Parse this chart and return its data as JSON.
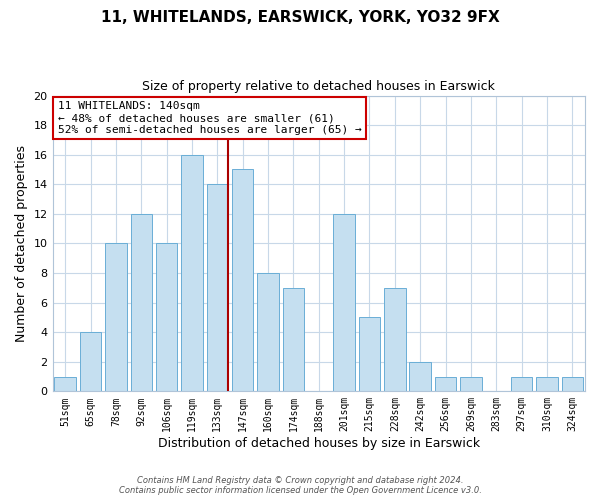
{
  "title": "11, WHITELANDS, EARSWICK, YORK, YO32 9FX",
  "subtitle": "Size of property relative to detached houses in Earswick",
  "xlabel": "Distribution of detached houses by size in Earswick",
  "ylabel": "Number of detached properties",
  "categories": [
    "51sqm",
    "65sqm",
    "78sqm",
    "92sqm",
    "106sqm",
    "119sqm",
    "133sqm",
    "147sqm",
    "160sqm",
    "174sqm",
    "188sqm",
    "201sqm",
    "215sqm",
    "228sqm",
    "242sqm",
    "256sqm",
    "269sqm",
    "283sqm",
    "297sqm",
    "310sqm",
    "324sqm"
  ],
  "values": [
    1,
    4,
    10,
    12,
    10,
    16,
    14,
    15,
    8,
    7,
    0,
    12,
    5,
    7,
    2,
    1,
    1,
    0,
    1,
    1,
    1
  ],
  "bar_color": "#c5dff0",
  "bar_edge_color": "#6aaed6",
  "highlight_line_color": "#aa0000",
  "highlight_line_index": 6,
  "ylim": [
    0,
    20
  ],
  "yticks": [
    0,
    2,
    4,
    6,
    8,
    10,
    12,
    14,
    16,
    18,
    20
  ],
  "annotation_title": "11 WHITELANDS: 140sqm",
  "annotation_line1": "← 48% of detached houses are smaller (61)",
  "annotation_line2": "52% of semi-detached houses are larger (65) →",
  "annotation_box_color": "#ffffff",
  "annotation_box_edge_color": "#cc0000",
  "footer_line1": "Contains HM Land Registry data © Crown copyright and database right 2024.",
  "footer_line2": "Contains public sector information licensed under the Open Government Licence v3.0.",
  "background_color": "#ffffff",
  "grid_color": "#c8d8e8"
}
